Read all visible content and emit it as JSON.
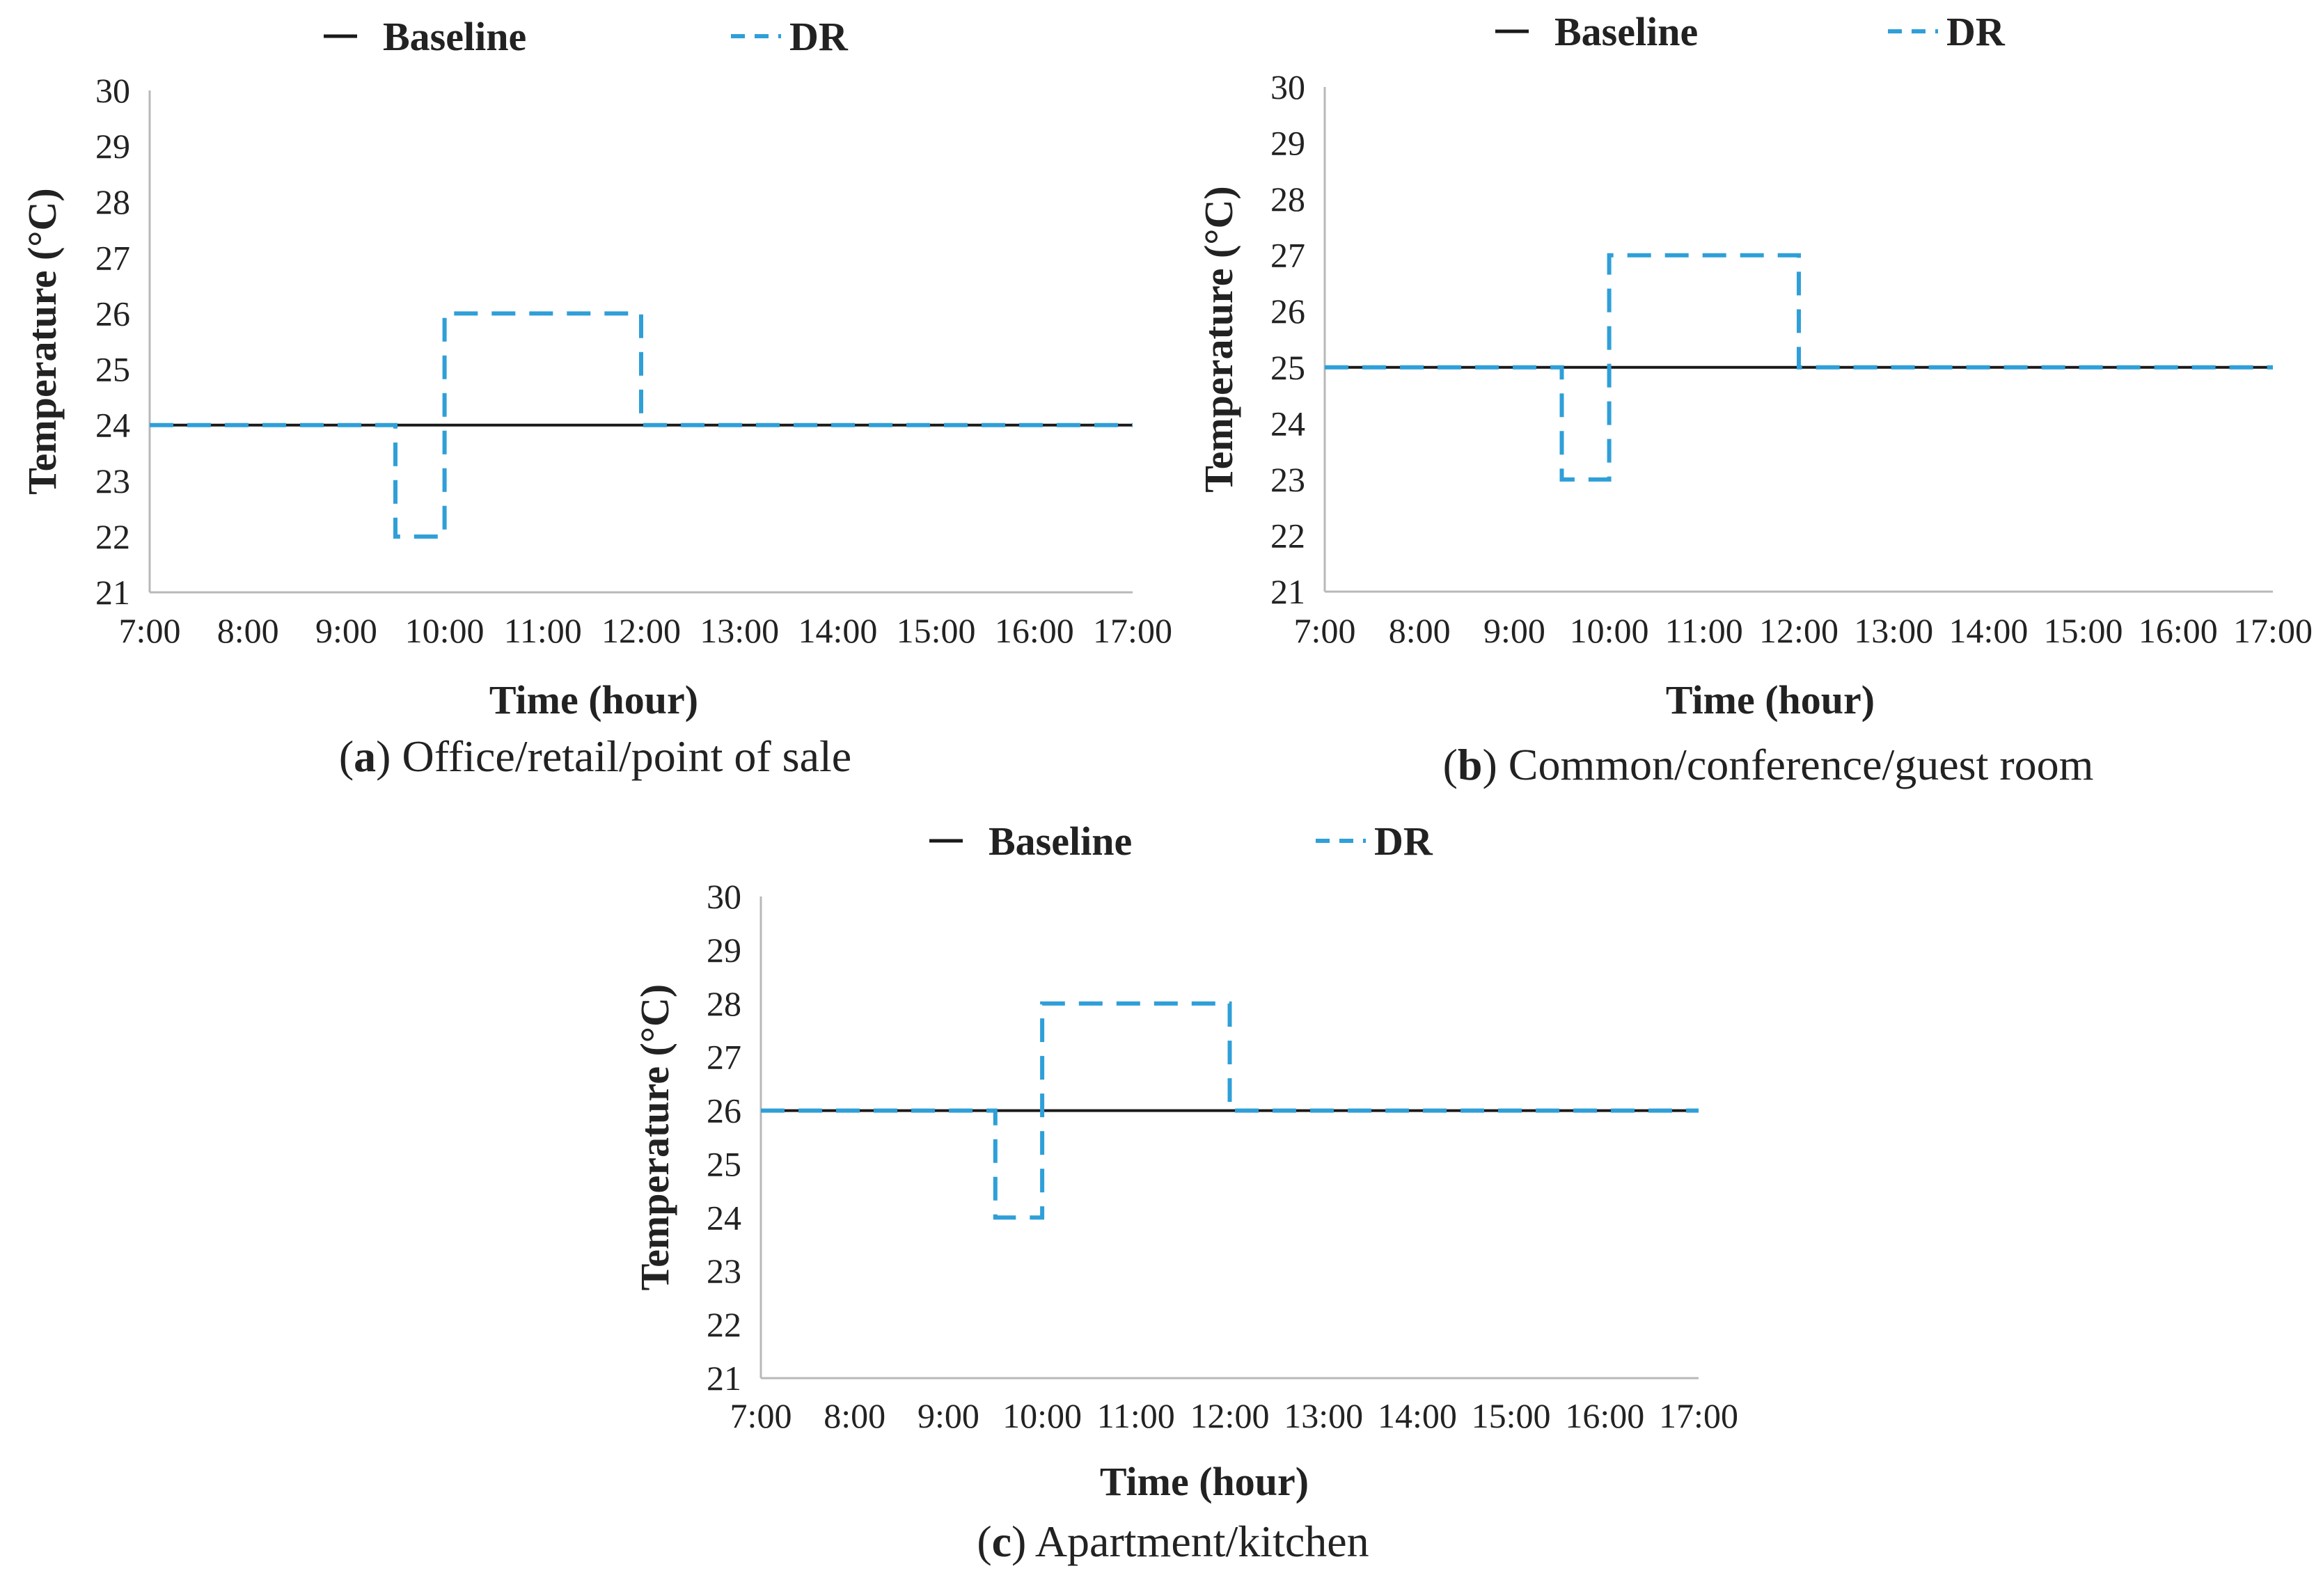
{
  "legend": {
    "baseline_label": "Baseline",
    "dr_label": "DR"
  },
  "colors": {
    "baseline": "#1a1a1a",
    "dr": "#2f9fd8",
    "axis": "#b8b8b8",
    "text": "#222222"
  },
  "chart_data": [
    {
      "type": "line",
      "caption_letter": "a",
      "caption_text": ") Office/retail/point of sale",
      "xlabel": "Time (hour)",
      "ylabel": "Temperature (°C)",
      "ylim": [
        21,
        30
      ],
      "yticks": [
        "21",
        "22",
        "23",
        "24",
        "25",
        "26",
        "27",
        "28",
        "29",
        "30"
      ],
      "xlim": [
        7,
        17
      ],
      "xtick_labels": [
        "7:00",
        "8:00",
        "9:00",
        "10:00",
        "11:00",
        "12:00",
        "13:00",
        "14:00",
        "15:00",
        "16:00",
        "17:00"
      ],
      "grid": false,
      "legend_position": "top",
      "series": [
        {
          "name": "Baseline",
          "style": "solid",
          "x": [
            7,
            17
          ],
          "y": [
            24,
            24
          ]
        },
        {
          "name": "DR",
          "style": "dashed",
          "x": [
            7,
            9.5,
            9.5,
            10,
            10,
            12,
            12,
            17
          ],
          "y": [
            24,
            24,
            22,
            22,
            26,
            26,
            24,
            24
          ]
        }
      ]
    },
    {
      "type": "line",
      "caption_letter": "b",
      "caption_text": ") Common/conference/guest room",
      "xlabel": "Time (hour)",
      "ylabel": "Temperature (°C)",
      "ylim": [
        21,
        30
      ],
      "yticks": [
        "21",
        "22",
        "23",
        "24",
        "25",
        "26",
        "27",
        "28",
        "29",
        "30"
      ],
      "xlim": [
        7,
        17
      ],
      "xtick_labels": [
        "7:00",
        "8:00",
        "9:00",
        "10:00",
        "11:00",
        "12:00",
        "13:00",
        "14:00",
        "15:00",
        "16:00",
        "17:00"
      ],
      "grid": false,
      "legend_position": "top",
      "series": [
        {
          "name": "Baseline",
          "style": "solid",
          "x": [
            7,
            17
          ],
          "y": [
            25,
            25
          ]
        },
        {
          "name": "DR",
          "style": "dashed",
          "x": [
            7,
            9.5,
            9.5,
            10,
            10,
            12,
            12,
            17
          ],
          "y": [
            25,
            25,
            23,
            23,
            27,
            27,
            25,
            25
          ]
        }
      ]
    },
    {
      "type": "line",
      "caption_letter": "c",
      "caption_text": ") Apartment/kitchen",
      "xlabel": "Time (hour)",
      "ylabel": "Temperature (°C)",
      "ylim": [
        21,
        30
      ],
      "yticks": [
        "21",
        "22",
        "23",
        "24",
        "25",
        "26",
        "27",
        "28",
        "29",
        "30"
      ],
      "xlim": [
        7,
        17
      ],
      "xtick_labels": [
        "7:00",
        "8:00",
        "9:00",
        "10:00",
        "11:00",
        "12:00",
        "13:00",
        "14:00",
        "15:00",
        "16:00",
        "17:00"
      ],
      "grid": false,
      "legend_position": "top",
      "series": [
        {
          "name": "Baseline",
          "style": "solid",
          "x": [
            7,
            17
          ],
          "y": [
            26,
            26
          ]
        },
        {
          "name": "DR",
          "style": "dashed",
          "x": [
            7,
            9.5,
            9.5,
            10,
            10,
            12,
            12,
            17
          ],
          "y": [
            26,
            26,
            24,
            24,
            28,
            28,
            26,
            26
          ]
        }
      ]
    }
  ]
}
